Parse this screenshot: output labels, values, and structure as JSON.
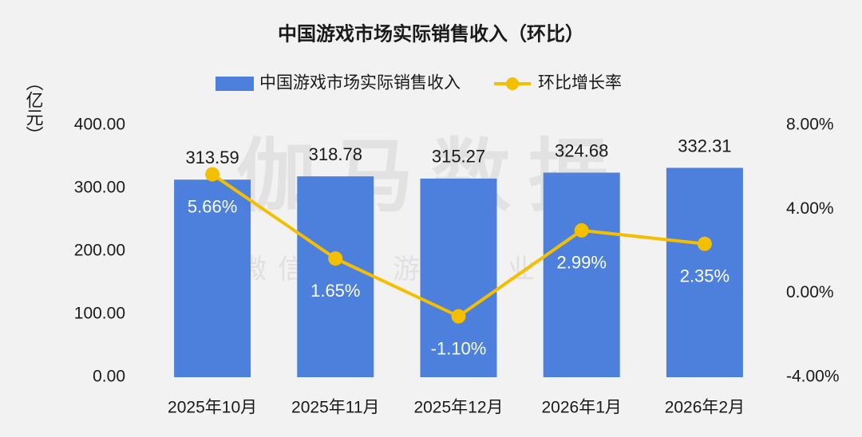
{
  "chart_data": {
    "type": "bar-line",
    "title": "中国游戏市场实际销售收入（环比）",
    "y_label": "（亿元）",
    "watermark": "伽马数据",
    "watermark_sub": "微信号：游戏产业报告",
    "categories": [
      "2025年10月",
      "2025年11月",
      "2025年12月",
      "2026年1月",
      "2026年2月"
    ],
    "series": [
      {
        "name": "中国游戏市场实际销售收入",
        "type": "bar",
        "axis": "y",
        "color": "#4d80dc",
        "values": [
          313.59,
          318.78,
          315.27,
          324.68,
          332.31
        ]
      },
      {
        "name": "环比增长率",
        "type": "line",
        "axis": "y2",
        "color": "#f4bf00",
        "values": [
          5.66,
          1.65,
          -1.1,
          2.99,
          2.35
        ],
        "value_labels": [
          "5.66%",
          "1.65%",
          "-1.10%",
          "2.99%",
          "2.35%"
        ]
      }
    ],
    "ylim": [
      0,
      400
    ],
    "yticks": [
      {
        "value": 0,
        "label": "0.00"
      },
      {
        "value": 100,
        "label": "100.00"
      },
      {
        "value": 200,
        "label": "200.00"
      },
      {
        "value": 300,
        "label": "300.00"
      },
      {
        "value": 400,
        "label": "400.00"
      }
    ],
    "y2lim": [
      -4,
      8
    ],
    "y2ticks": [
      {
        "value": -4,
        "label": "-4.00%"
      },
      {
        "value": 0,
        "label": "0.00%"
      },
      {
        "value": 4,
        "label": "4.00%"
      },
      {
        "value": 8,
        "label": "8.00%"
      }
    ],
    "grid": false,
    "legend": "top"
  }
}
